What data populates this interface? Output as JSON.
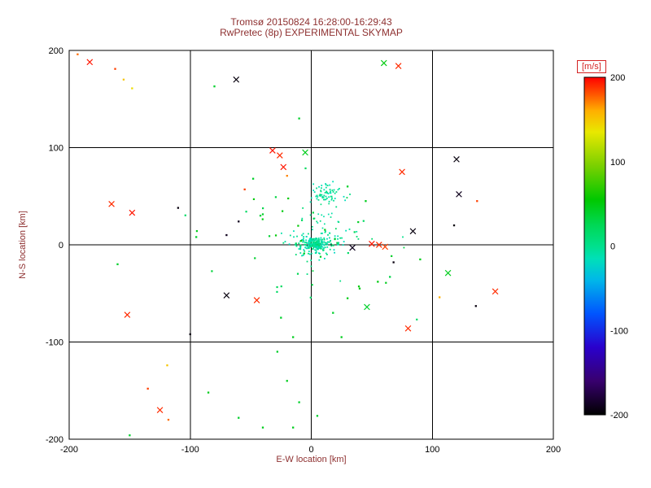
{
  "window": {
    "background": "#ffffff"
  },
  "header": {
    "title_line1": "Tromsø 20150824 16:28:00-16:29:43",
    "title_line2": "RwPretec (8p) EXPERIMENTAL SKYMAP"
  },
  "colors": {
    "title_text": "#8e3030",
    "axis_label_text": "#8e3030",
    "tick_text": "#000000",
    "frame": "#000000",
    "colorbar_label": "#d42222",
    "background": "#ffffff"
  },
  "chart_data": {
    "type": "scatter",
    "title": "Tromsø 20150824 16:28:00-16:29:43 / RwPretec (8p) EXPERIMENTAL SKYMAP",
    "xlabel": "E-W location [km]",
    "ylabel": "N-S location [km]",
    "xlim": [
      -200,
      200
    ],
    "ylim": [
      -200,
      200
    ],
    "xticks": [
      -200,
      -100,
      0,
      100,
      200
    ],
    "yticks": [
      -200,
      -100,
      0,
      100,
      200
    ],
    "grid": true,
    "colorbar": {
      "label": "[m/s]",
      "min": -200,
      "max": 200,
      "ticks": [
        200,
        100,
        0,
        -100,
        -200
      ]
    },
    "colormap_stops": [
      [
        -200,
        "#000000"
      ],
      [
        -160,
        "#38006e"
      ],
      [
        -120,
        "#2a00cc"
      ],
      [
        -80,
        "#0055ff"
      ],
      [
        -40,
        "#00b8e8"
      ],
      [
        -15,
        "#00e0b8"
      ],
      [
        0,
        "#00e08c"
      ],
      [
        25,
        "#00d855"
      ],
      [
        55,
        "#00c800"
      ],
      [
        95,
        "#7ad000"
      ],
      [
        135,
        "#e8e800"
      ],
      [
        160,
        "#ffb000"
      ],
      [
        180,
        "#ff5500"
      ],
      [
        200,
        "#ff0000"
      ]
    ],
    "points": [
      [
        -193,
        196,
        175,
        "."
      ],
      [
        -183,
        188,
        195,
        "x"
      ],
      [
        -162,
        181,
        185,
        "."
      ],
      [
        -155,
        170,
        150,
        "."
      ],
      [
        -148,
        161,
        140,
        "."
      ],
      [
        -165,
        42,
        190,
        "x"
      ],
      [
        -148,
        33,
        195,
        "x"
      ],
      [
        -110,
        38,
        -195,
        "."
      ],
      [
        -152,
        -72,
        190,
        "x"
      ],
      [
        -160,
        -20,
        40,
        "."
      ],
      [
        -62,
        170,
        -195,
        "x"
      ],
      [
        -80,
        163,
        40,
        "."
      ],
      [
        -10,
        130,
        40,
        "."
      ],
      [
        60,
        187,
        50,
        "x"
      ],
      [
        72,
        184,
        190,
        "x"
      ],
      [
        -32,
        97,
        195,
        "x"
      ],
      [
        -26,
        92,
        190,
        "x"
      ],
      [
        -5,
        95,
        45,
        "x"
      ],
      [
        -23,
        80,
        195,
        "x"
      ],
      [
        -20,
        71,
        170,
        "."
      ],
      [
        -55,
        57,
        185,
        "."
      ],
      [
        -48,
        68,
        40,
        "."
      ],
      [
        -60,
        24,
        -190,
        "."
      ],
      [
        -42,
        30,
        35,
        "."
      ],
      [
        -70,
        10,
        -190,
        "."
      ],
      [
        -95,
        8,
        40,
        "."
      ],
      [
        120,
        88,
        -195,
        "x"
      ],
      [
        122,
        52,
        -190,
        "x"
      ],
      [
        137,
        45,
        185,
        "."
      ],
      [
        75,
        75,
        190,
        "x"
      ],
      [
        84,
        14,
        -195,
        "x"
      ],
      [
        50,
        1,
        195,
        "x"
      ],
      [
        56,
        0,
        190,
        "x"
      ],
      [
        61,
        -2,
        185,
        "x"
      ],
      [
        34,
        -3,
        -190,
        "x"
      ],
      [
        68,
        -18,
        -195,
        "."
      ],
      [
        113,
        -29,
        45,
        "x"
      ],
      [
        152,
        -48,
        190,
        "x"
      ],
      [
        136,
        -63,
        -195,
        "."
      ],
      [
        106,
        -54,
        160,
        "."
      ],
      [
        80,
        -86,
        190,
        "x"
      ],
      [
        46,
        -64,
        40,
        "x"
      ],
      [
        40,
        -45,
        45,
        "."
      ],
      [
        55,
        -38,
        50,
        "."
      ],
      [
        30,
        -55,
        45,
        "."
      ],
      [
        65,
        -33,
        30,
        "."
      ],
      [
        90,
        -15,
        45,
        "."
      ],
      [
        -70,
        -52,
        -195,
        "x"
      ],
      [
        -45,
        -57,
        190,
        "x"
      ],
      [
        -100,
        -92,
        -195,
        "."
      ],
      [
        -119,
        -124,
        150,
        "."
      ],
      [
        -135,
        -148,
        185,
        "."
      ],
      [
        -125,
        -170,
        190,
        "x"
      ],
      [
        -118,
        -180,
        175,
        "."
      ],
      [
        -150,
        -196,
        40,
        "."
      ],
      [
        -85,
        -152,
        45,
        "."
      ],
      [
        -60,
        -178,
        40,
        "."
      ],
      [
        -40,
        -188,
        45,
        "."
      ],
      [
        -28,
        -110,
        40,
        "."
      ],
      [
        -20,
        -140,
        45,
        "."
      ],
      [
        -10,
        -162,
        40,
        "."
      ],
      [
        -15,
        -188,
        45,
        "."
      ],
      [
        5,
        -176,
        40,
        "."
      ],
      [
        25,
        -95,
        45,
        "."
      ],
      [
        -25,
        -75,
        40,
        "."
      ],
      [
        -15,
        -95,
        45,
        "."
      ],
      [
        18,
        -70,
        40,
        "."
      ],
      [
        30,
        60,
        40,
        "."
      ],
      [
        45,
        45,
        45,
        "."
      ],
      [
        118,
        20,
        -195,
        "."
      ]
    ],
    "clusters": [
      {
        "cx": 3,
        "cy": 1,
        "sx": 4.5,
        "sy": 3.5,
        "n": 130,
        "vmin": -18,
        "vmax": 8,
        "seed": 11,
        "size": 1.8
      },
      {
        "cx": 4,
        "cy": 1,
        "sx": 11,
        "sy": 7,
        "n": 140,
        "vmin": -20,
        "vmax": 12,
        "seed": 22,
        "size": 1.8
      },
      {
        "cx": 13,
        "cy": 52,
        "sx": 8,
        "sy": 5,
        "n": 65,
        "vmin": -18,
        "vmax": 6,
        "seed": 33,
        "size": 1.8
      },
      {
        "cx": 9,
        "cy": 27,
        "sx": 7,
        "sy": 11,
        "n": 22,
        "vmin": -15,
        "vmax": 10,
        "seed": 44,
        "size": 1.7
      },
      {
        "cx": 0,
        "cy": -8,
        "sx": 40,
        "sy": 45,
        "n": 42,
        "vmin": 15,
        "vmax": 55,
        "seed": 55,
        "size": 2.2
      },
      {
        "cx": 22,
        "cy": 10,
        "sx": 28,
        "sy": 22,
        "n": 16,
        "vmin": -12,
        "vmax": 35,
        "seed": 66,
        "size": 1.8
      }
    ]
  }
}
